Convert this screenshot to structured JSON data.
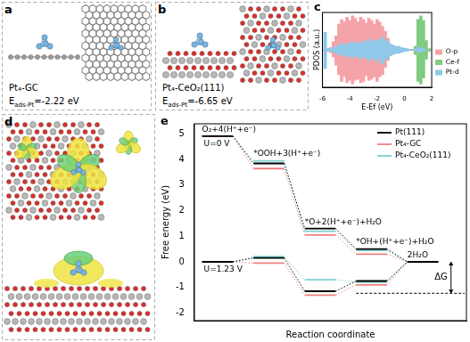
{
  "figure": {
    "panels": [
      {
        "label": "a",
        "title": "Pt₄-GC",
        "energy": {
          "symbol": "E",
          "subscript": "ads-Pt",
          "text": "=-2.22 eV"
        }
      },
      {
        "label": "b",
        "title": "Pt₄-CeO₂(111)",
        "energy": {
          "symbol": "E",
          "subscript": "ads-Pt",
          "text": "=-6.65 eV"
        }
      },
      {
        "label": "d"
      }
    ]
  },
  "chart_data": [
    {
      "panel": "c",
      "type": "bar",
      "xlabel": "E-Ef (eV)",
      "ylabel": "PDOS (a.u.)",
      "x": [
        -6,
        -5.8,
        -5.6,
        -5.4,
        -5.2,
        -5,
        -4.8,
        -4.6,
        -4.4,
        -4.2,
        -4,
        -3.8,
        -3.6,
        -3.4,
        -3.2,
        -3,
        -2.8,
        -2.6,
        -2.4,
        -2.2,
        -2,
        -1.8,
        -1.6,
        -1.4,
        -1.2,
        -1,
        -0.8,
        -0.6,
        -0.4,
        -0.2,
        0,
        0.2,
        0.4,
        0.6,
        0.8,
        1,
        1.2,
        1.4,
        1.6,
        1.8,
        2
      ],
      "xlim": [
        -6,
        2
      ],
      "xticks": [
        -6,
        -4,
        -2,
        0,
        2
      ],
      "ylim": [
        -3.2,
        3.2
      ],
      "yticks": [
        0
      ],
      "tick_labels": "x",
      "grid": "y",
      "legend": "right",
      "series": [
        {
          "name": "O-p",
          "color": "#f4a3a8",
          "values": [
            [
              0,
              0
            ],
            [
              -0.05,
              0.05
            ],
            [
              -0.1,
              0.1
            ],
            [
              -0.25,
              0.2
            ],
            [
              -0.6,
              0.7
            ],
            [
              -1.3,
              1.2
            ],
            [
              -2.1,
              2.2
            ],
            [
              -2.7,
              2.6
            ],
            [
              -2.3,
              2.4
            ],
            [
              -2.8,
              2.8
            ],
            [
              -2.6,
              2.5
            ],
            [
              -2.9,
              2.9
            ],
            [
              -2.6,
              2.7
            ],
            [
              -2.5,
              2.4
            ],
            [
              -2.8,
              2.8
            ],
            [
              -2.7,
              2.6
            ],
            [
              -2.2,
              2.3
            ],
            [
              -2.6,
              2.7
            ],
            [
              -2.5,
              2.5
            ],
            [
              -2.3,
              2.2
            ],
            [
              -2.7,
              2.6
            ],
            [
              -2.3,
              2.4
            ],
            [
              -2.1,
              2.0
            ],
            [
              -1.5,
              1.6
            ],
            [
              -0.9,
              1.0
            ],
            [
              -0.4,
              0.4
            ],
            [
              -0.15,
              0.15
            ],
            [
              -0.05,
              0.05
            ],
            [
              -0.03,
              0.03
            ],
            [
              -0.02,
              0.02
            ],
            [
              -0.02,
              0.02
            ],
            [
              -0.02,
              0.02
            ],
            [
              -0.03,
              0.03
            ],
            [
              -0.05,
              0.05
            ],
            [
              -0.1,
              0.1
            ],
            [
              -0.2,
              0.2
            ],
            [
              -0.25,
              0.25
            ],
            [
              -0.15,
              0.15
            ],
            [
              -0.05,
              0.05
            ],
            [
              -0.02,
              0.02
            ],
            [
              0,
              0
            ]
          ]
        },
        {
          "name": "Ce-f",
          "color": "#80cc80",
          "values": [
            [
              0,
              0
            ],
            [
              0,
              0
            ],
            [
              0,
              0
            ],
            [
              0,
              0
            ],
            [
              -0.05,
              0.05
            ],
            [
              -0.05,
              0.05
            ],
            [
              -0.05,
              0.05
            ],
            [
              -0.05,
              0.05
            ],
            [
              -0.05,
              0.05
            ],
            [
              -0.05,
              0.05
            ],
            [
              -0.05,
              0.05
            ],
            [
              -0.05,
              0.05
            ],
            [
              -0.05,
              0.05
            ],
            [
              -0.05,
              0.05
            ],
            [
              -0.05,
              0.05
            ],
            [
              -0.05,
              0.05
            ],
            [
              -0.05,
              0.05
            ],
            [
              -0.05,
              0.05
            ],
            [
              -0.05,
              0.05
            ],
            [
              -0.05,
              0.05
            ],
            [
              -0.05,
              0.05
            ],
            [
              -0.05,
              0.05
            ],
            [
              -0.05,
              0.05
            ],
            [
              -0.05,
              0.05
            ],
            [
              -0.05,
              0.05
            ],
            [
              0,
              0
            ],
            [
              0,
              0
            ],
            [
              0,
              0
            ],
            [
              0,
              0
            ],
            [
              0,
              0
            ],
            [
              0,
              0
            ],
            [
              0,
              0
            ],
            [
              0,
              0
            ],
            [
              0,
              0
            ],
            [
              -0.4,
              0.3
            ],
            [
              -2.7,
              2.6
            ],
            [
              -2.9,
              2.9
            ],
            [
              -2.4,
              2.5
            ],
            [
              -0.8,
              0.8
            ],
            [
              -0.1,
              0.1
            ],
            [
              0,
              0
            ]
          ]
        },
        {
          "name": "Pt-d",
          "color": "#8fc8e8",
          "values": [
            [
              0,
              0
            ],
            [
              -1.6,
              1.5
            ],
            [
              -0.1,
              0.1
            ],
            [
              -0.1,
              0.1
            ],
            [
              -0.2,
              0.2
            ],
            [
              -0.3,
              0.3
            ],
            [
              -0.4,
              0.4
            ],
            [
              -0.5,
              0.6
            ],
            [
              -0.4,
              0.4
            ],
            [
              -0.6,
              0.5
            ],
            [
              -0.5,
              0.6
            ],
            [
              -0.7,
              0.7
            ],
            [
              -0.5,
              0.5
            ],
            [
              -0.6,
              0.6
            ],
            [
              -0.8,
              0.7
            ],
            [
              -0.6,
              0.6
            ],
            [
              -0.7,
              0.8
            ],
            [
              -0.9,
              0.9
            ],
            [
              -0.7,
              0.7
            ],
            [
              -0.8,
              0.8
            ],
            [
              -1.0,
              0.9
            ],
            [
              -0.8,
              0.8
            ],
            [
              -1.2,
              1.1
            ],
            [
              -0.9,
              0.9
            ],
            [
              -0.7,
              0.7
            ],
            [
              -0.5,
              0.5
            ],
            [
              -0.4,
              0.4
            ],
            [
              -0.3,
              0.3
            ],
            [
              -0.3,
              0.3
            ],
            [
              -0.2,
              0.2
            ],
            [
              -0.15,
              0.15
            ],
            [
              -0.1,
              0.1
            ],
            [
              -0.05,
              0.05
            ],
            [
              0,
              0
            ],
            [
              -0.1,
              0.1
            ],
            [
              -0.2,
              0.2
            ],
            [
              -0.2,
              0.2
            ],
            [
              -0.1,
              0.1
            ],
            [
              0,
              0
            ],
            [
              0,
              0
            ],
            [
              0,
              0
            ]
          ]
        }
      ]
    },
    {
      "panel": "e",
      "type": "line",
      "xlabel": "Reaction coordinate",
      "ylabel": "Free energy (eV)",
      "categories": [
        "O₂+4(H⁺+e⁻)",
        "*OOH+3(H⁺+e⁻)",
        "*O+2(H⁺+e⁻)+H₂O",
        "*OH+(H⁺+e⁻)+H₂O",
        "2H₂O"
      ],
      "ylim": [
        -2.3,
        5.4
      ],
      "yticks": [
        -2,
        -1,
        0,
        1,
        2,
        3,
        4,
        5
      ],
      "tick_labels": "y",
      "legend": "upper right",
      "line_style": "dotted",
      "groups": [
        {
          "label": "U=0 V",
          "series": [
            {
              "name": "Pt(111)",
              "color": "#000000",
              "values": [
                4.92,
                3.85,
                1.3,
                0.5,
                0
              ]
            },
            {
              "name": "Pt₄-GC",
              "color": "#f08080",
              "values": [
                4.92,
                3.65,
                1.05,
                0.3,
                0
              ]
            },
            {
              "name": "Pt₄-CeO₂(111)",
              "color": "#7fcfcf",
              "values": [
                4.92,
                3.95,
                1.2,
                0.45,
                0
              ]
            }
          ]
        },
        {
          "label": "U=1.23 V",
          "series": [
            {
              "name": "Pt(111)",
              "color": "#000000",
              "values": [
                0,
                0.15,
                -1.15,
                -0.75,
                0
              ]
            },
            {
              "name": "Pt₄-GC",
              "color": "#f08080",
              "values": [
                0,
                -0.05,
                -1.3,
                -0.9,
                0
              ]
            },
            {
              "name": "Pt₄-CeO₂(111)",
              "color": "#7fcfcf",
              "values": [
                0,
                0.2,
                -0.7,
                -0.8,
                0
              ]
            }
          ]
        }
      ],
      "annotations": [
        {
          "text": "ΔG",
          "from": 0,
          "to": -1.23
        }
      ]
    }
  ]
}
